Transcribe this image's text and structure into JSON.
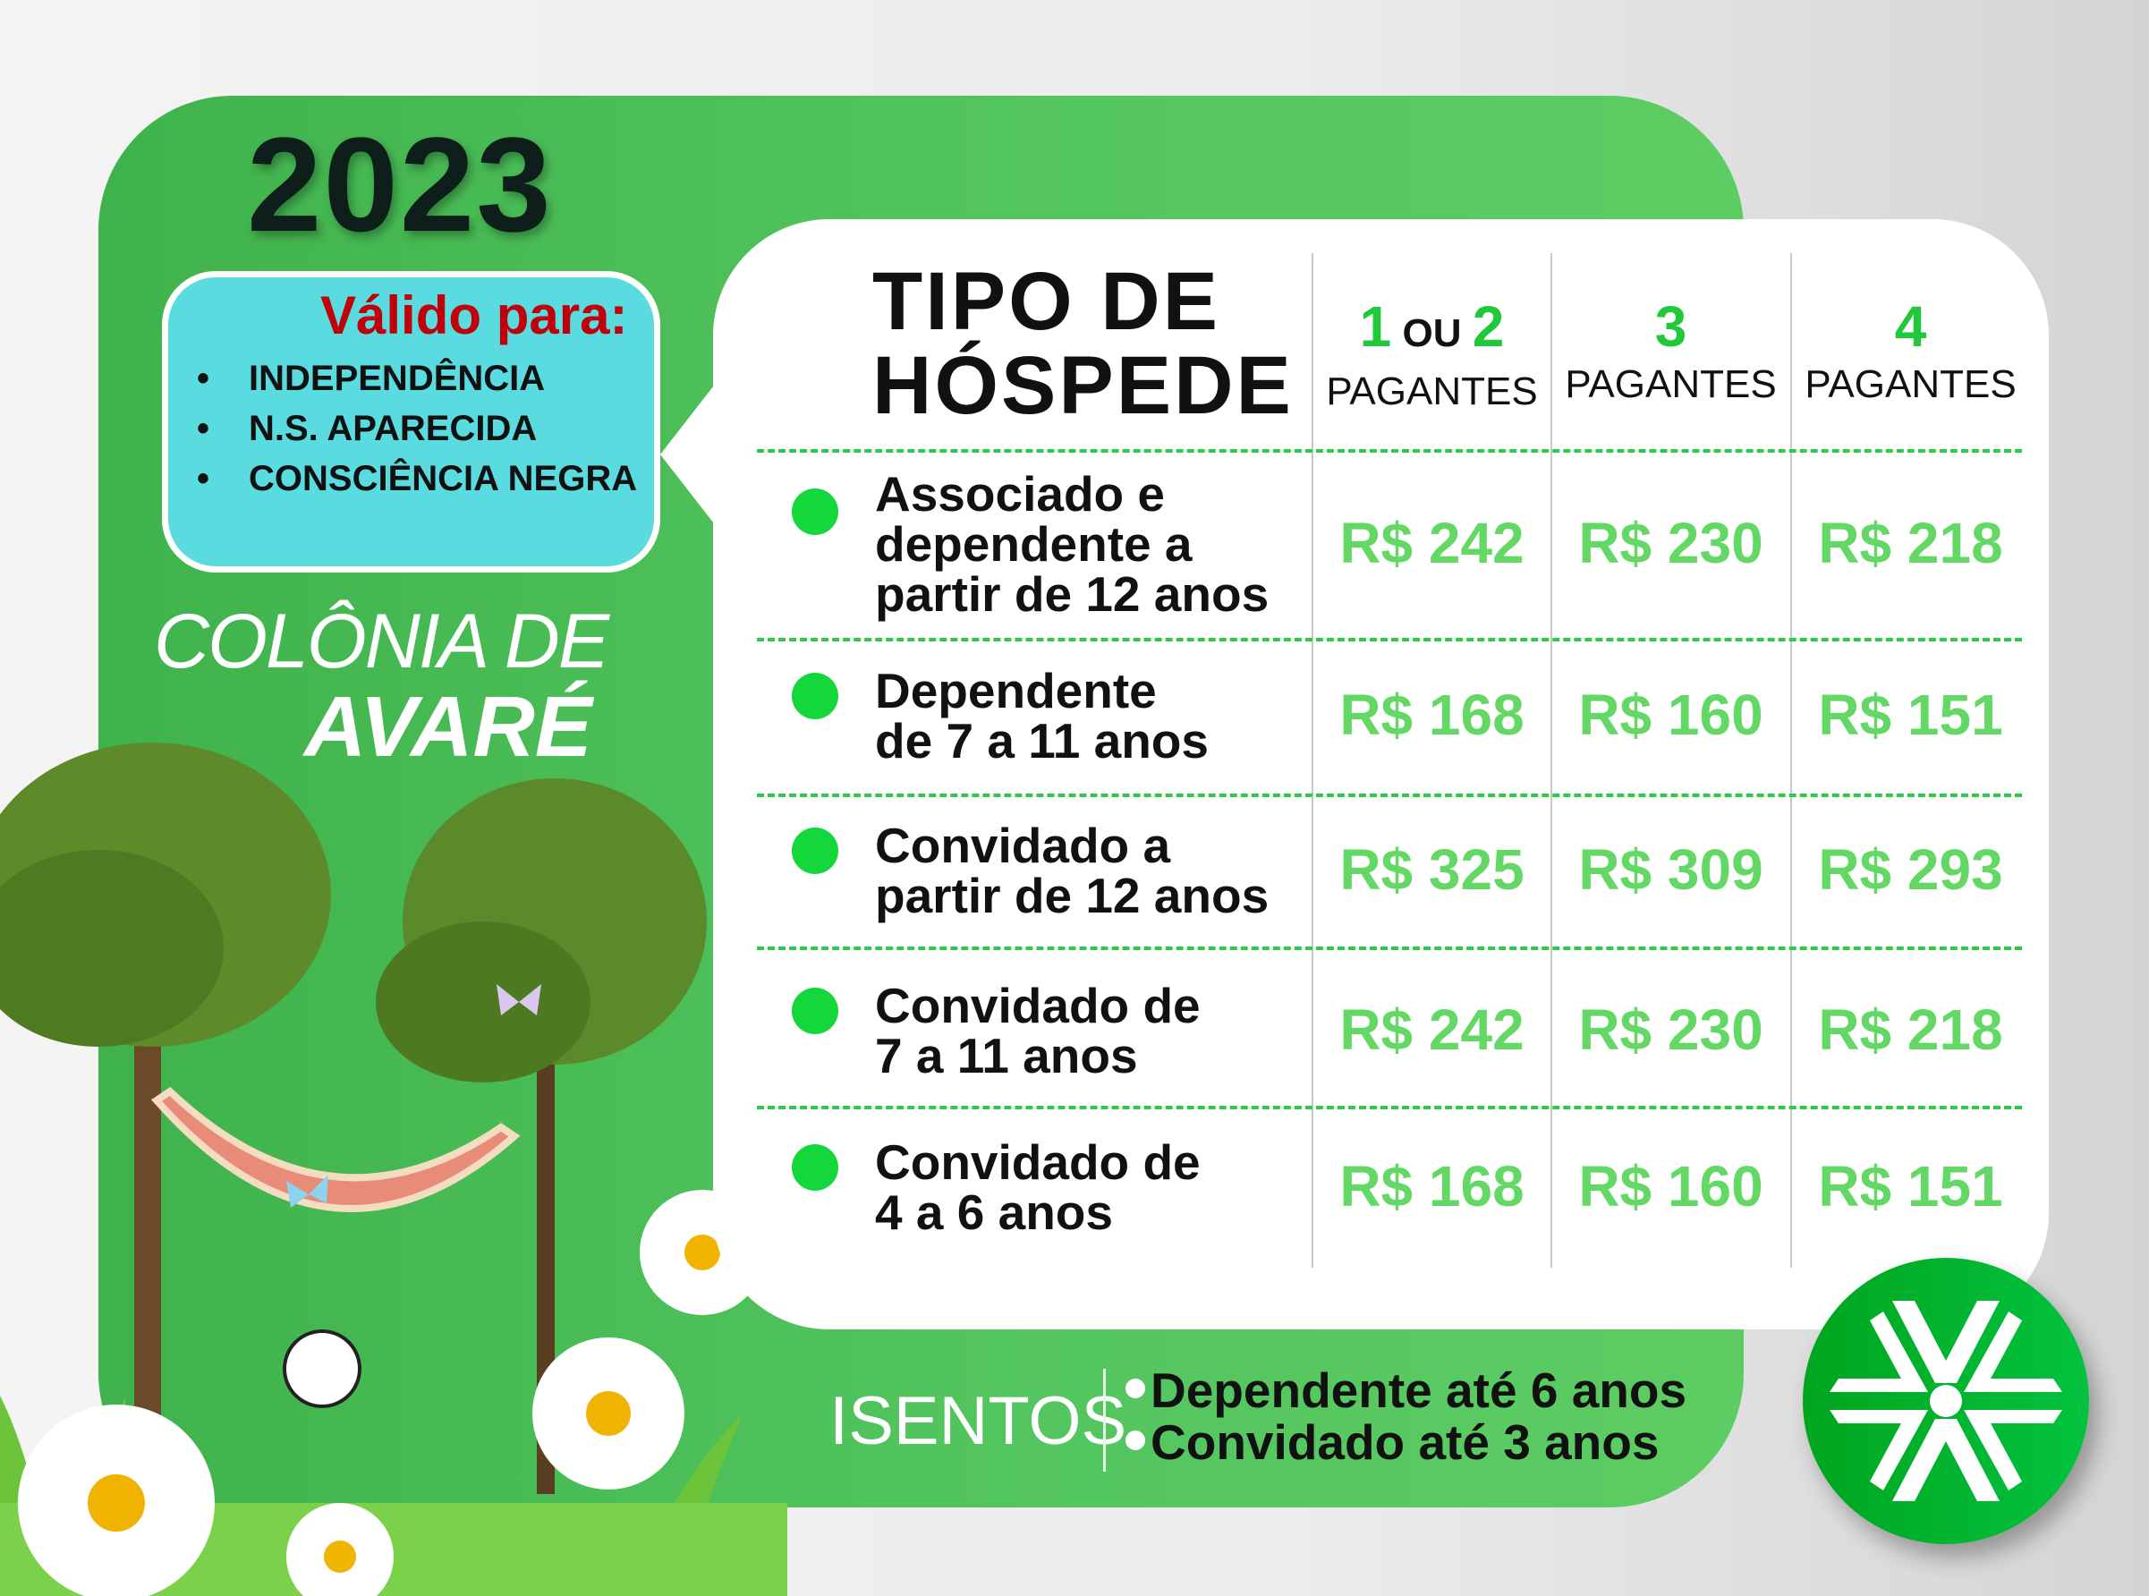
{
  "year": "2023",
  "valid_box": {
    "title": "Válido para:",
    "items": [
      "INDEPENDÊNCIA",
      "N.S. APARECIDA",
      "CONSCIÊNCIA NEGRA"
    ]
  },
  "place": {
    "line1": "COLÔNIA DE",
    "line2": "AVARÉ"
  },
  "table": {
    "header_line1": "TIPO DE",
    "header_line2": "HÓSPEDE",
    "columns": [
      {
        "n1": "1",
        "sep": " OU ",
        "n2": "2",
        "label": "PAGANTES"
      },
      {
        "n1": "3",
        "sep": "",
        "n2": "",
        "label": "PAGANTES"
      },
      {
        "n1": "4",
        "sep": "",
        "n2": "",
        "label": "PAGANTES"
      }
    ],
    "rows": [
      {
        "label": "Associado e\ndependente a\npartir de 12 anos",
        "prices": [
          "R$ 242",
          "R$ 230",
          "R$ 218"
        ]
      },
      {
        "label": "Dependente\nde 7 a 11 anos",
        "prices": [
          "R$ 168",
          "R$ 160",
          "R$ 151"
        ]
      },
      {
        "label": "Convidado a\npartir de 12 anos",
        "prices": [
          "R$ 325",
          "R$ 309",
          "R$ 293"
        ]
      },
      {
        "label": "Convidado de\n7 a 11 anos",
        "prices": [
          "R$ 242",
          "R$ 230",
          "R$ 218"
        ]
      },
      {
        "label": "Convidado de\n4 a 6 anos",
        "prices": [
          "R$ 168",
          "R$ 160",
          "R$ 151"
        ]
      }
    ]
  },
  "isentos": {
    "label": "ISENTOS",
    "items": [
      "Dependente até 6 anos",
      "Convidado até 3 anos"
    ]
  },
  "colors": {
    "panel_green": "#52c45e",
    "price_green": "#63d865",
    "bullet_green": "#14d83b",
    "valid_title_red": "#c0000a",
    "valid_box_cyan": "#5adbe0",
    "logo_green": "#03c23f"
  },
  "icons": [
    "snowflake-logo-icon",
    "tree-icon",
    "hammock-icon",
    "daisy-icon",
    "soccer-ball-icon",
    "butterfly-icon"
  ]
}
